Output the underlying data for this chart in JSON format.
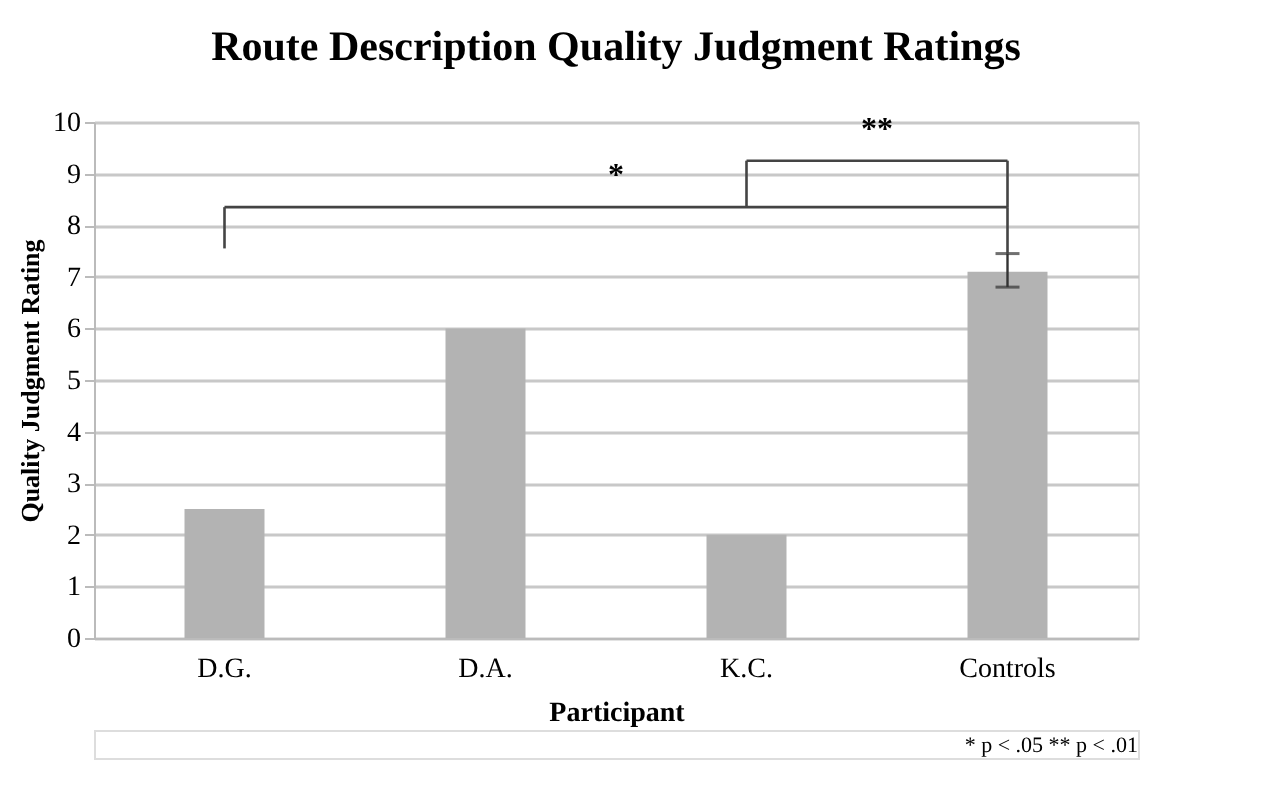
{
  "chart_data": {
    "type": "bar",
    "title": "Route Description Quality Judgment Ratings",
    "xlabel": "Participant",
    "ylabel": "Quality Judgment Rating",
    "categories": [
      "D.G.",
      "D.A.",
      "K.C.",
      "Controls"
    ],
    "values": [
      2.5,
      6,
      2,
      7.1
    ],
    "errors": [
      null,
      null,
      null,
      [
        6.8,
        7.45
      ]
    ],
    "color": "#b3b3b3",
    "ylim": [
      0,
      10
    ],
    "yticks": [
      0,
      1,
      2,
      3,
      4,
      5,
      6,
      7,
      8,
      9,
      10
    ],
    "grid": "y",
    "annotations": [
      "*",
      "**",
      "* p < .05 ** p < .01"
    ]
  }
}
